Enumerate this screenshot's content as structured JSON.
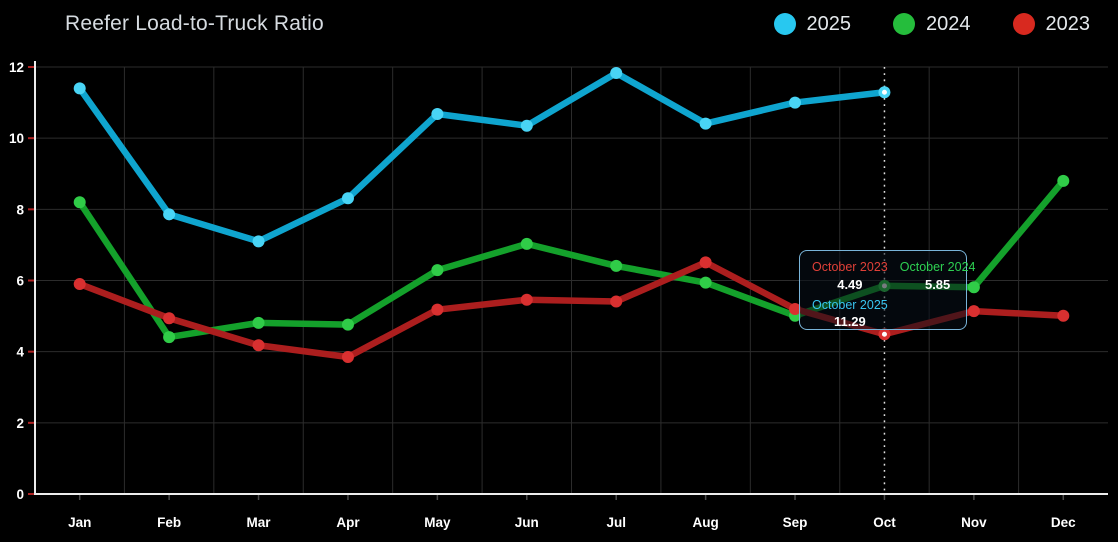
{
  "header": {
    "title": "Reefer Load-to-Truck Ratio"
  },
  "legend": {
    "items": [
      {
        "label": "2025",
        "color": "#28c8f0"
      },
      {
        "label": "2024",
        "color": "#25bd3c"
      },
      {
        "label": "2023",
        "color": "#d8291f"
      }
    ]
  },
  "chart_data": {
    "type": "line",
    "title": "Reefer Load-to-Truck Ratio",
    "categories": [
      "Jan",
      "Feb",
      "Mar",
      "Apr",
      "May",
      "Jun",
      "Jul",
      "Aug",
      "Sep",
      "Oct",
      "Nov",
      "Dec"
    ],
    "series": [
      {
        "name": "2025",
        "line_color": "#0fa5cf",
        "point_color": "#49d4f5",
        "values": [
          11.4,
          7.86,
          7.1,
          8.31,
          10.68,
          10.35,
          11.83,
          10.41,
          11.0,
          11.29,
          null,
          null
        ]
      },
      {
        "name": "2024",
        "line_color": "#14a12b",
        "point_color": "#30cc48",
        "values": [
          8.2,
          4.41,
          4.81,
          4.76,
          6.29,
          7.03,
          6.41,
          5.94,
          5.01,
          5.85,
          5.81,
          8.8
        ]
      },
      {
        "name": "2023",
        "line_color": "#ac1e1e",
        "point_color": "#d93030",
        "values": [
          5.9,
          4.94,
          4.18,
          3.85,
          5.18,
          5.46,
          5.41,
          6.51,
          5.2,
          4.49,
          5.14,
          5.01
        ]
      }
    ],
    "xlabel": "",
    "ylabel": "",
    "ylim": [
      0,
      12
    ],
    "ytick_step": 2,
    "y_tick_labels": [
      "0",
      "2",
      "4",
      "6",
      "8",
      "10",
      "12"
    ],
    "grid": true,
    "legend_position": "top-right",
    "highlighted_category": "Oct",
    "highlighted_index": 9,
    "colors": {
      "background": "#000000",
      "gridline": "#2c2c2c",
      "axis": "#ededed",
      "y_tick_mark": "#b02222",
      "x_tick_mark": "#4a4a4a",
      "tick_label": "#ffffff",
      "highlight_line": "#e0e0e0",
      "emphasis_dot": "#ffffff"
    }
  },
  "tooltip": {
    "entries": [
      {
        "label": "October 2023",
        "value": "4.49",
        "color": "#e04038"
      },
      {
        "label": "October 2024",
        "value": "5.85",
        "color": "#2ed152"
      },
      {
        "label": "October 2025",
        "value": "11.29",
        "color": "#38c5f0"
      }
    ]
  }
}
